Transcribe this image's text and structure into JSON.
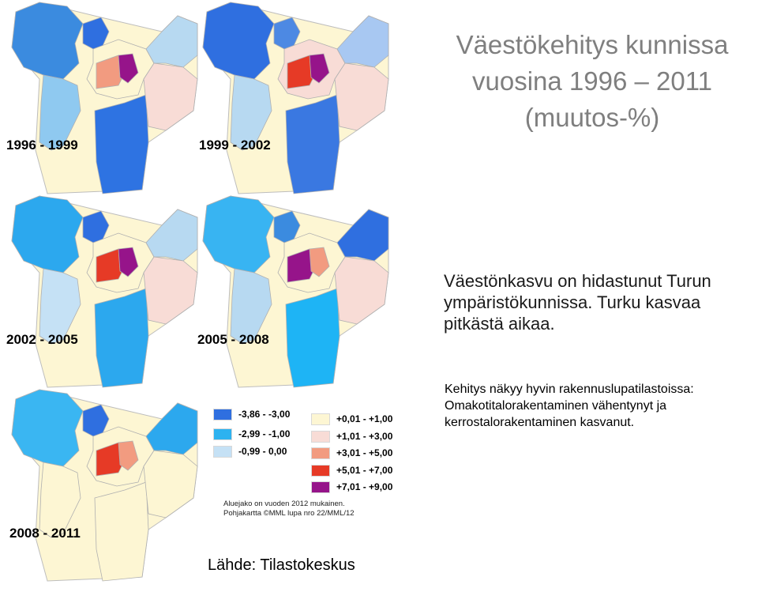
{
  "title": {
    "line1": "Väestökehitys kunnissa",
    "line2": "vuosina 1996 – 2011",
    "line3": "(muutos-%)"
  },
  "body_text": "Väestönkasvu on hidastunut Turun ympäristökunnissa. Turku kasvaa pitkästä aikaa.",
  "note_text": {
    "line1": "Kehitys näkyy hyvin rakennuslupatilastoissa:",
    "line2": "Omakotitalorakentaminen vähentynyt ja",
    "line3": "kerrostalorakentaminen kasvanut."
  },
  "maps": [
    {
      "period": "1996 - 1999",
      "colors": [
        "#3b8bdf",
        "#2f6fe0",
        "#8fc9f0",
        "#fdf6d3",
        "#f29b80",
        "#96148a",
        "#b7d9f1",
        "#2e73e2",
        "#f8dcd6"
      ]
    },
    {
      "period": "1999 - 2002",
      "colors": [
        "#2f6fe0",
        "#4d89e3",
        "#b7d9f1",
        "#f8dcd6",
        "#e63a26",
        "#96148a",
        "#a8c8f2",
        "#3a78e1",
        "#f8dcd6"
      ]
    },
    {
      "period": "2002 - 2005",
      "colors": [
        "#2ca8ee",
        "#2f6fe0",
        "#c5e1f5",
        "#fdf6d3",
        "#e63a26",
        "#96148a",
        "#b7d9f1",
        "#2ca8ee",
        "#f8dcd6"
      ]
    },
    {
      "period": "2005 - 2008",
      "colors": [
        "#38b4f2",
        "#3b8bdf",
        "#b7d9f1",
        "#fdf6d3",
        "#96148a",
        "#f29b80",
        "#2f6fe0",
        "#1eb4f5",
        "#f8dcd6"
      ]
    },
    {
      "period": "2008 - 2011",
      "colors": [
        "#3ab6f2",
        "#2f6fe0",
        "#fdf6d3",
        "#fdf6d3",
        "#e63a26",
        "#f29b80",
        "#2ca8ee",
        "#fdf6d3",
        "#fdf6d3"
      ]
    }
  ],
  "legend": [
    {
      "label": "-3,86 - -3,00",
      "color": "#2f6fe0"
    },
    {
      "label": "-2,99 - -1,00",
      "color": "#2db2f0"
    },
    {
      "label": "-0,99 - 0,00",
      "color": "#c5e1f5"
    },
    {
      "label": "+0,01 - +1,00",
      "color": "#fdf6d3"
    },
    {
      "label": "+1,01 - +3,00",
      "color": "#f8dcd6"
    },
    {
      "label": "+3,01 - +5,00",
      "color": "#f29b80"
    },
    {
      "label": "+5,01 - +7,00",
      "color": "#e63a26"
    },
    {
      "label": "+7,01 - +9,00",
      "color": "#96148a"
    }
  ],
  "credits": {
    "line1": "Aluejako on vuoden 2012 mukainen.",
    "line2": "Pohjakartta ©MML lupa nro 22/MML/12"
  },
  "source": "Lähde: Tilastokeskus"
}
